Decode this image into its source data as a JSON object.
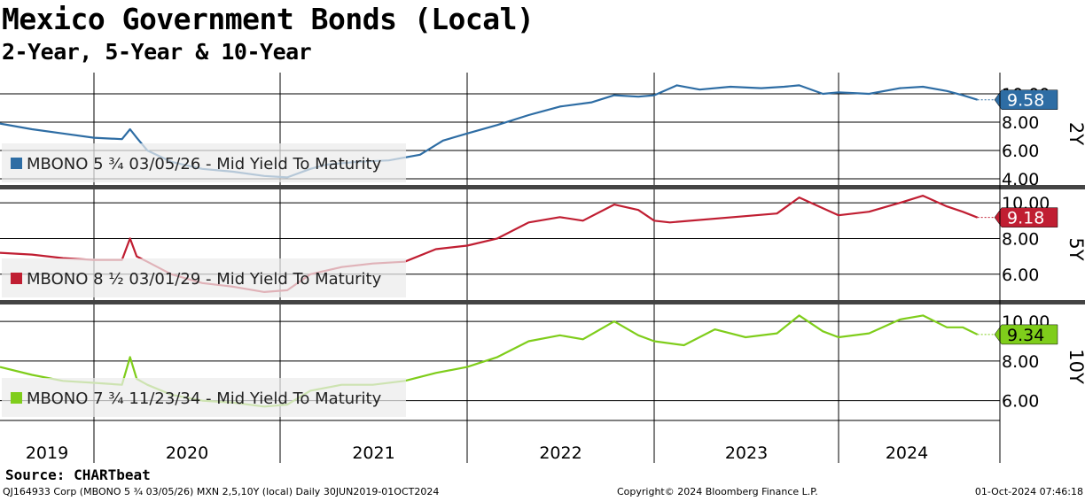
{
  "chart_data": {
    "type": "line",
    "title": "Mexico Government Bonds (Local)",
    "subtitle": "2-Year, 5-Year & 10-Year",
    "x_tick_labels": [
      "2019",
      "2020",
      "2021",
      "2022",
      "2023",
      "2024"
    ],
    "x_range": [
      "2019-06-30",
      "2024-10-01"
    ],
    "grid": true,
    "legend_placement": "bottom-left of each panel",
    "panels": [
      {
        "panel_label": "2Y",
        "series_name": "MBONO 5 ¾ 03/05/26 - Mid Yield To Maturity",
        "color": "#2e6da4",
        "last_value": "9.58",
        "ylim": [
          3.5,
          11.5
        ],
        "yticks": [
          "10.00",
          "8.00",
          "6.00",
          "4.00"
        ],
        "points": [
          [
            "2019-06-30",
            7.9
          ],
          [
            "2019-09-01",
            7.5
          ],
          [
            "2019-11-01",
            7.2
          ],
          [
            "2020-01-01",
            6.9
          ],
          [
            "2020-02-25",
            6.8
          ],
          [
            "2020-03-12",
            7.5
          ],
          [
            "2020-03-25",
            6.9
          ],
          [
            "2020-04-15",
            6.0
          ],
          [
            "2020-06-01",
            5.2
          ],
          [
            "2020-08-01",
            4.7
          ],
          [
            "2020-10-01",
            4.5
          ],
          [
            "2020-12-01",
            4.2
          ],
          [
            "2021-01-15",
            4.1
          ],
          [
            "2021-03-01",
            4.7
          ],
          [
            "2021-04-01",
            5.0
          ],
          [
            "2021-06-01",
            5.2
          ],
          [
            "2021-08-01",
            5.3
          ],
          [
            "2021-10-01",
            5.7
          ],
          [
            "2021-11-15",
            6.7
          ],
          [
            "2022-01-01",
            7.2
          ],
          [
            "2022-03-01",
            7.8
          ],
          [
            "2022-05-01",
            8.5
          ],
          [
            "2022-07-01",
            9.1
          ],
          [
            "2022-09-01",
            9.4
          ],
          [
            "2022-10-15",
            9.9
          ],
          [
            "2022-12-01",
            9.8
          ],
          [
            "2023-01-01",
            9.9
          ],
          [
            "2023-02-15",
            10.6
          ],
          [
            "2023-04-01",
            10.3
          ],
          [
            "2023-06-01",
            10.5
          ],
          [
            "2023-08-01",
            10.4
          ],
          [
            "2023-09-15",
            10.5
          ],
          [
            "2023-10-15",
            10.6
          ],
          [
            "2023-12-01",
            10.0
          ],
          [
            "2024-01-01",
            10.1
          ],
          [
            "2024-03-01",
            10.0
          ],
          [
            "2024-05-01",
            10.4
          ],
          [
            "2024-06-15",
            10.5
          ],
          [
            "2024-08-01",
            10.2
          ],
          [
            "2024-09-01",
            9.9
          ],
          [
            "2024-09-30",
            9.58
          ]
        ]
      },
      {
        "panel_label": "5Y",
        "series_name": "MBONO 8 ½ 03/01/29 - Mid Yield To Maturity",
        "color": "#c01e32",
        "last_value": "9.18",
        "ylim": [
          4.5,
          10.8
        ],
        "yticks": [
          "10.00",
          "8.00",
          "6.00"
        ],
        "points": [
          [
            "2019-06-30",
            7.2
          ],
          [
            "2019-09-01",
            7.1
          ],
          [
            "2019-11-01",
            6.9
          ],
          [
            "2020-01-01",
            6.8
          ],
          [
            "2020-02-25",
            6.8
          ],
          [
            "2020-03-12",
            8.0
          ],
          [
            "2020-03-25",
            7.0
          ],
          [
            "2020-04-15",
            6.7
          ],
          [
            "2020-06-01",
            6.0
          ],
          [
            "2020-08-01",
            5.5
          ],
          [
            "2020-10-01",
            5.3
          ],
          [
            "2020-12-01",
            5.0
          ],
          [
            "2021-01-15",
            5.1
          ],
          [
            "2021-03-01",
            6.0
          ],
          [
            "2021-05-01",
            6.4
          ],
          [
            "2021-07-01",
            6.6
          ],
          [
            "2021-09-01",
            6.7
          ],
          [
            "2021-11-01",
            7.4
          ],
          [
            "2022-01-01",
            7.6
          ],
          [
            "2022-03-01",
            8.0
          ],
          [
            "2022-05-01",
            8.9
          ],
          [
            "2022-07-01",
            9.2
          ],
          [
            "2022-08-15",
            9.0
          ],
          [
            "2022-10-15",
            9.9
          ],
          [
            "2022-12-01",
            9.6
          ],
          [
            "2023-01-01",
            9.0
          ],
          [
            "2023-02-01",
            8.9
          ],
          [
            "2023-09-01",
            9.4
          ],
          [
            "2023-10-15",
            10.3
          ],
          [
            "2023-12-01",
            9.7
          ],
          [
            "2024-01-01",
            9.3
          ],
          [
            "2024-03-01",
            9.5
          ],
          [
            "2024-05-01",
            10.0
          ],
          [
            "2024-06-15",
            10.4
          ],
          [
            "2024-08-01",
            9.8
          ],
          [
            "2024-09-01",
            9.5
          ],
          [
            "2024-09-30",
            9.18
          ]
        ]
      },
      {
        "panel_label": "10Y",
        "series_name": "MBONO 7 ¾ 11/23/34 - Mid Yield To Maturity",
        "color": "#7fcd1b",
        "last_value": "9.34",
        "ylim": [
          5.0,
          10.9
        ],
        "yticks": [
          "10.00",
          "8.00",
          "6.00"
        ],
        "points": [
          [
            "2019-06-30",
            7.7
          ],
          [
            "2019-09-01",
            7.3
          ],
          [
            "2019-11-01",
            7.0
          ],
          [
            "2020-01-01",
            6.9
          ],
          [
            "2020-02-25",
            6.8
          ],
          [
            "2020-03-12",
            8.2
          ],
          [
            "2020-03-25",
            7.1
          ],
          [
            "2020-04-15",
            6.8
          ],
          [
            "2020-06-01",
            6.3
          ],
          [
            "2020-08-01",
            6.0
          ],
          [
            "2020-10-01",
            5.9
          ],
          [
            "2020-12-01",
            5.7
          ],
          [
            "2021-01-15",
            5.8
          ],
          [
            "2021-03-01",
            6.5
          ],
          [
            "2021-05-01",
            6.8
          ],
          [
            "2021-07-01",
            6.8
          ],
          [
            "2021-09-01",
            7.0
          ],
          [
            "2021-11-01",
            7.4
          ],
          [
            "2022-01-01",
            7.7
          ],
          [
            "2022-03-01",
            8.2
          ],
          [
            "2022-05-01",
            9.0
          ],
          [
            "2022-07-01",
            9.3
          ],
          [
            "2022-08-15",
            9.1
          ],
          [
            "2022-10-15",
            10.0
          ],
          [
            "2022-12-01",
            9.3
          ],
          [
            "2023-01-01",
            9.0
          ],
          [
            "2023-03-01",
            8.8
          ],
          [
            "2023-05-01",
            9.6
          ],
          [
            "2023-07-01",
            9.2
          ],
          [
            "2023-09-01",
            9.4
          ],
          [
            "2023-10-15",
            10.3
          ],
          [
            "2023-12-01",
            9.5
          ],
          [
            "2024-01-01",
            9.2
          ],
          [
            "2024-03-01",
            9.4
          ],
          [
            "2024-05-01",
            10.1
          ],
          [
            "2024-06-15",
            10.3
          ],
          [
            "2024-08-01",
            9.7
          ],
          [
            "2024-09-01",
            9.7
          ],
          [
            "2024-09-30",
            9.34
          ]
        ]
      }
    ]
  },
  "source": "Source: CHARTbeat",
  "footer": {
    "left": "QJ164933 Corp (MBONO 5 ¾ 03/05/26) MXN 2,5,10Y (local)  Daily 30JUN2019-01OCT2024",
    "center": "Copyright© 2024 Bloomberg Finance L.P.",
    "right": "01-Oct-2024 07:46:18"
  }
}
